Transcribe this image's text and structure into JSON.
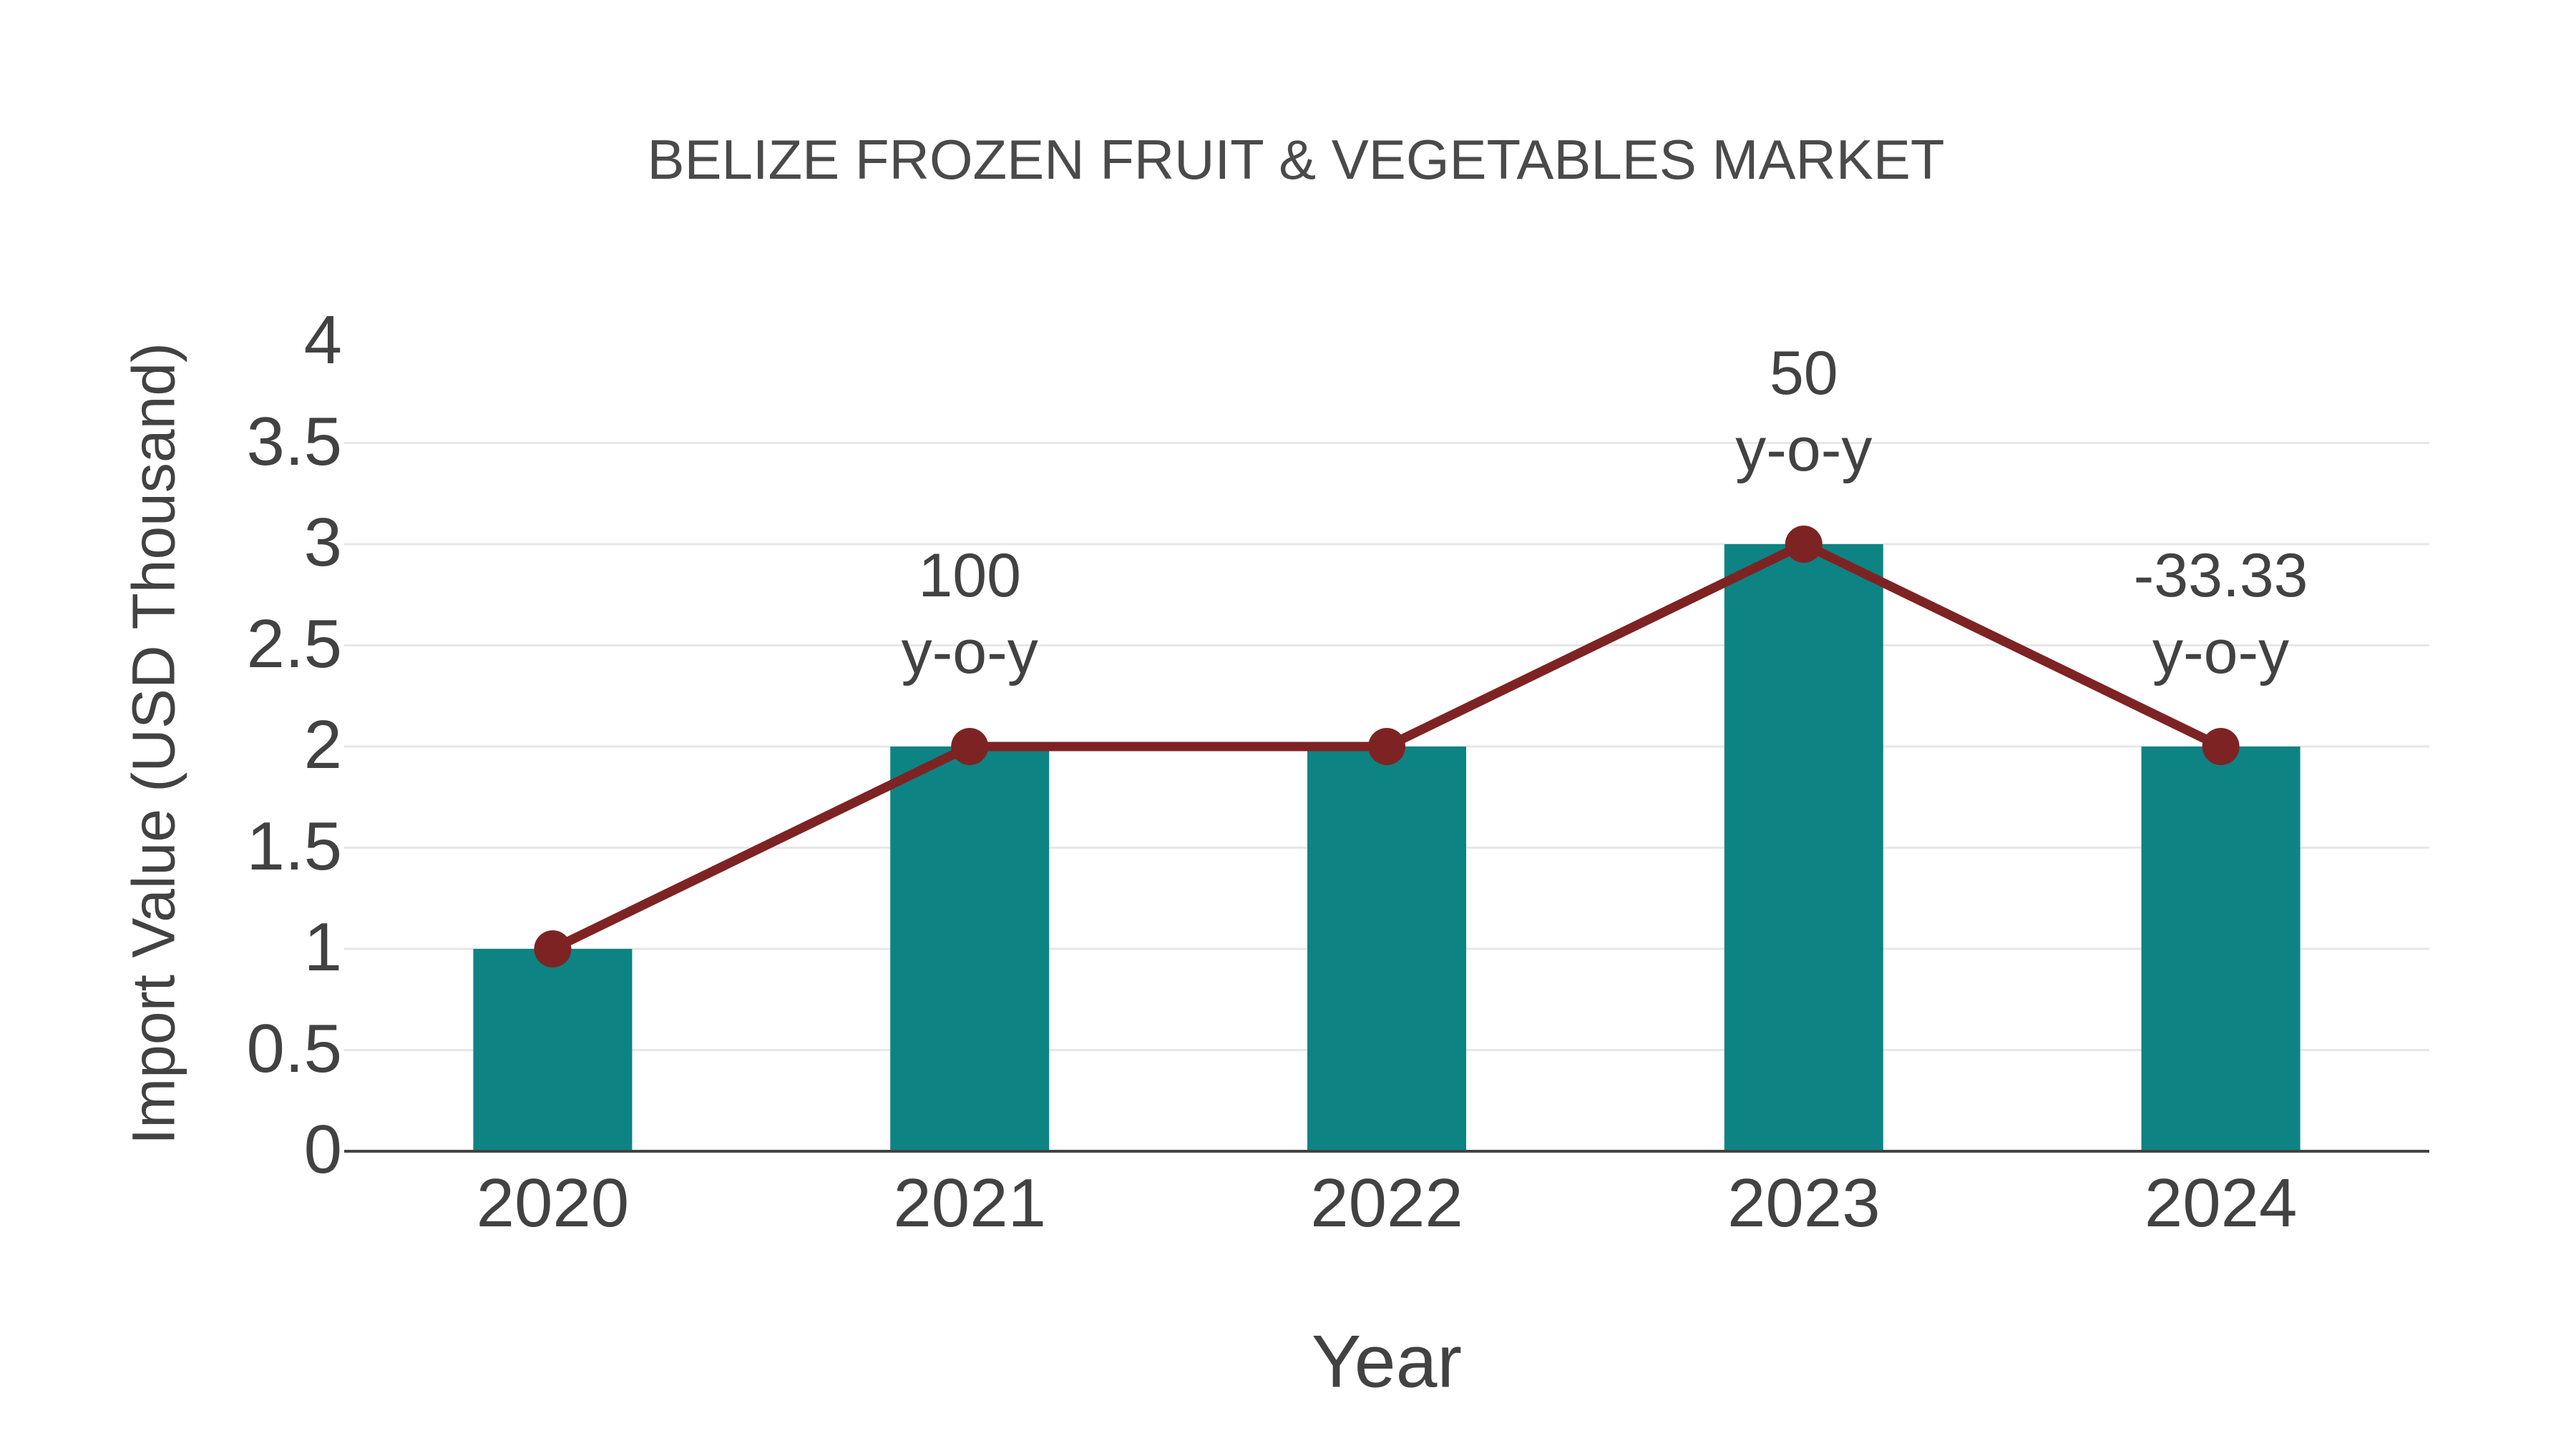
{
  "chart_data": {
    "type": "bar",
    "title": "BELIZE FROZEN FRUIT & VEGETABLES MARKET",
    "xlabel": "Year",
    "ylabel": "Import Value (USD Thousand)",
    "categories": [
      "2020",
      "2021",
      "2022",
      "2023",
      "2024"
    ],
    "series": [
      {
        "name": "Import Value bars",
        "type": "bar",
        "values": [
          1,
          2,
          2,
          3,
          2
        ]
      },
      {
        "name": "Import Value trend line",
        "type": "line",
        "values": [
          1,
          2,
          2,
          3,
          2
        ]
      }
    ],
    "annotations": [
      {
        "category": "2021",
        "value_label": "100",
        "sub_label": "y-o-y"
      },
      {
        "category": "2023",
        "value_label": "50",
        "sub_label": "y-o-y"
      },
      {
        "category": "2024",
        "value_label": "-33.33",
        "sub_label": "y-o-y"
      }
    ],
    "ylim": [
      0,
      4
    ],
    "yticks": [
      0,
      0.5,
      1,
      1.5,
      2,
      2.5,
      3,
      3.5,
      4
    ],
    "grid": true,
    "legend_position": "none",
    "colors": {
      "bar": "#0e8384",
      "line": "#7e2323",
      "marker": "#7e2323",
      "grid": "#e7e7e7",
      "axis_line": "#424242",
      "text": "#424242",
      "background": "#ffffff"
    }
  }
}
